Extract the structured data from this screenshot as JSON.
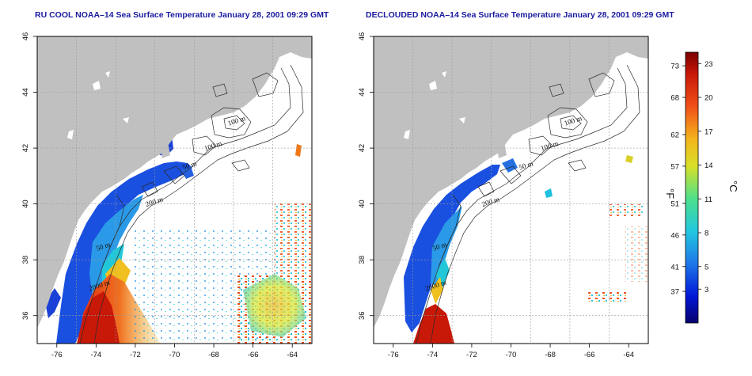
{
  "chart_data": [
    {
      "type": "heatmap",
      "title": "RU COOL NOAA–14 Sea Surface Temperature January 28, 2001 09:29 GMT",
      "xlabel": "",
      "ylabel": "",
      "xlim": [
        -77,
        -63
      ],
      "ylim": [
        35,
        46
      ],
      "xticks": [
        -76,
        -74,
        -72,
        -70,
        -68,
        -66,
        -64
      ],
      "xtick_labels": [
        "-76",
        "-74",
        "-72",
        "-70",
        "-68",
        "-66",
        "-64"
      ],
      "yticks": [
        36,
        38,
        40,
        42,
        44,
        46
      ],
      "ytick_labels": [
        "36",
        "38",
        "40",
        "42",
        "44",
        "46"
      ],
      "grid": true,
      "contour_labels": [
        {
          "text": "100 m",
          "lon": -66.8,
          "lat": 42.9
        },
        {
          "text": "100 m",
          "lon": -68.0,
          "lat": 42.0
        },
        {
          "text": "50 m",
          "lon": -69.2,
          "lat": 41.3
        },
        {
          "text": "200 m",
          "lon": -71.0,
          "lat": 40.0
        },
        {
          "text": "50 m",
          "lon": -73.6,
          "lat": 38.4
        },
        {
          "text": "2000 m",
          "lon": -73.8,
          "lat": 37.0
        }
      ]
    },
    {
      "type": "heatmap",
      "title": "DECLOUDED NOAA–14 Sea Surface Temperature January 28, 2001 09:29 GMT",
      "xlabel": "",
      "ylabel": "",
      "xlim": [
        -77,
        -63
      ],
      "ylim": [
        35,
        46
      ],
      "xticks": [
        -76,
        -74,
        -72,
        -70,
        -68,
        -66,
        -64
      ],
      "xtick_labels": [
        "-76",
        "-74",
        "-72",
        "-70",
        "-68",
        "-66",
        "-64"
      ],
      "yticks": [
        36,
        38,
        40,
        42,
        44,
        46
      ],
      "ytick_labels": [
        "36",
        "38",
        "40",
        "42",
        "44",
        "46"
      ],
      "grid": true,
      "contour_labels": [
        {
          "text": "100 m",
          "lon": -66.8,
          "lat": 42.9
        },
        {
          "text": "100 m",
          "lon": -68.0,
          "lat": 42.0
        },
        {
          "text": "50 m",
          "lon": -69.2,
          "lat": 41.3
        },
        {
          "text": "200 m",
          "lon": -71.0,
          "lat": 40.0
        },
        {
          "text": "50 m",
          "lon": -73.6,
          "lat": 38.4
        },
        {
          "text": "2000 m",
          "lon": -73.8,
          "lat": 37.0
        }
      ]
    }
  ],
  "colorbar": {
    "fahrenheit_label": "°F",
    "celsius_label": "°C",
    "celsius_min": 0,
    "celsius_max": 24,
    "fahrenheit_ticks": [
      {
        "label": "73",
        "celsius": 22.8
      },
      {
        "label": "68",
        "celsius": 20.0
      },
      {
        "label": "62",
        "celsius": 16.7
      },
      {
        "label": "57",
        "celsius": 13.9
      },
      {
        "label": "51",
        "celsius": 10.6
      },
      {
        "label": "46",
        "celsius": 7.8
      },
      {
        "label": "41",
        "celsius": 5.0
      },
      {
        "label": "37",
        "celsius": 2.8
      }
    ],
    "celsius_ticks": [
      {
        "label": "23",
        "celsius": 23
      },
      {
        "label": "20",
        "celsius": 20
      },
      {
        "label": "17",
        "celsius": 17
      },
      {
        "label": "14",
        "celsius": 14
      },
      {
        "label": "11",
        "celsius": 11
      },
      {
        "label": "8",
        "celsius": 8
      },
      {
        "label": "5",
        "celsius": 5
      },
      {
        "label": "3",
        "celsius": 3
      }
    ]
  },
  "colors": {
    "land": "#c0c0c0",
    "title": "#1a1aa0",
    "colormap": [
      "#08006e",
      "#0018d8",
      "#1e78e8",
      "#22c8e0",
      "#4ee08a",
      "#d8e028",
      "#f4b41c",
      "#f05018",
      "#c81808",
      "#7a0000"
    ]
  }
}
